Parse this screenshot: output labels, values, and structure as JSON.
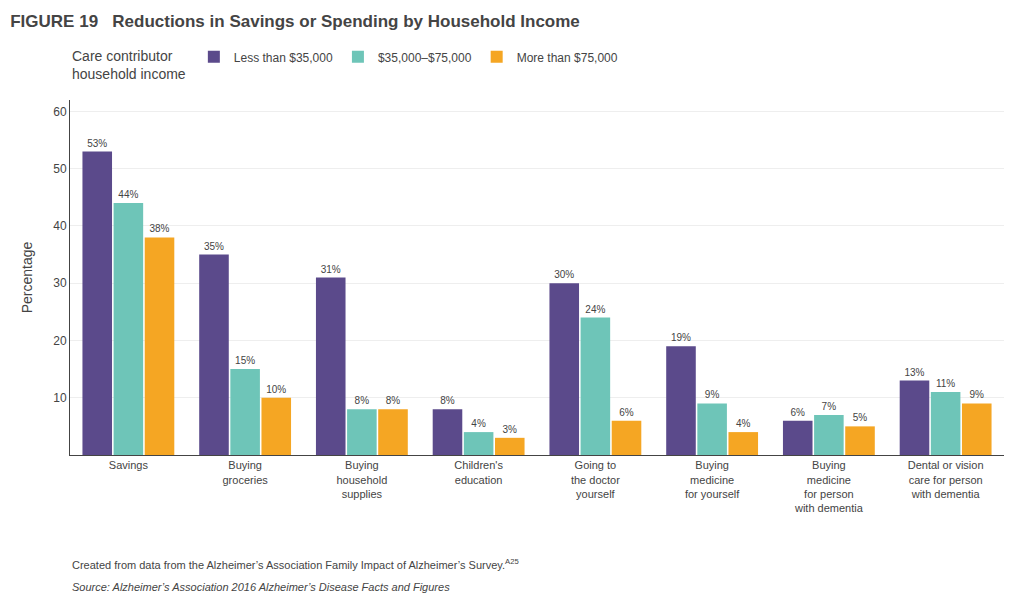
{
  "chart_data": {
    "type": "bar",
    "title": "Reductions in Savings or Spending by Household Income",
    "ylabel": "Percentage",
    "legend_title": "Care contributor\nhousehold income",
    "categories": [
      "Savings",
      "Buying\ngroceries",
      "Buying\nhousehold\nsupplies",
      "Children's\neducation",
      "Going to\nthe doctor\nyourself",
      "Buying\nmedicine\nfor yourself",
      "Buying\nmedicine\nfor person\nwith dementia",
      "Dental or vision\ncare for person\nwith dementia"
    ],
    "series": [
      {
        "name": "Less than $35,000",
        "color": "#5b4a8b",
        "values": [
          53,
          35,
          31,
          8,
          30,
          19,
          6,
          13
        ],
        "value_labels": [
          "53%",
          "35%",
          "31%",
          "8%",
          "30%",
          "19%",
          "6%",
          "13%"
        ]
      },
      {
        "name": "$35,000–$75,000",
        "color": "#6ec5b8",
        "values": [
          44,
          15,
          8,
          4,
          24,
          9,
          7,
          11
        ],
        "value_labels": [
          "44%",
          "15%",
          "8%",
          "4%",
          "24%",
          "9%",
          "7%",
          "11%"
        ]
      },
      {
        "name": "More than $75,000",
        "color": "#f5a623",
        "values": [
          38,
          10,
          8,
          3,
          6,
          4,
          5,
          9
        ],
        "value_labels": [
          "38%",
          "10%",
          "8%",
          "3%",
          "6%",
          "4%",
          "5%",
          "9%"
        ]
      }
    ],
    "ylim": [
      0,
      62
    ],
    "yticks": [
      10,
      20,
      30,
      40,
      50,
      60
    ],
    "grid": true,
    "data_labels": true,
    "annotations": [
      "FIGURE 19",
      "Created from data from the Alzheimer’s Association Family Impact of Alzheimer’s Survey.",
      "A25",
      "Source: Alzheimer’s Association 2016 Alzheimer’s Disease Facts and Figures"
    ]
  }
}
